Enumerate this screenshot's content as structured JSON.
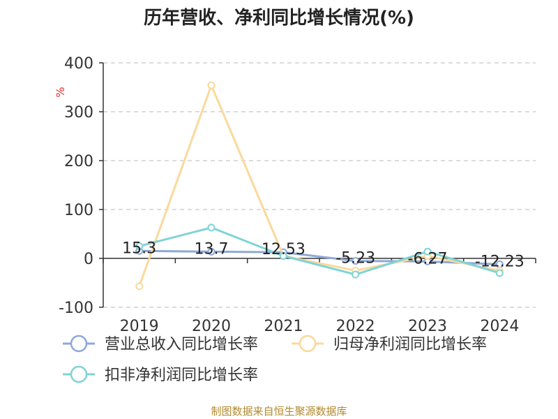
{
  "chart_data": {
    "type": "line",
    "title": "历年营收、净利同比增长情况(%)",
    "ylabel": "%",
    "categories": [
      "2019",
      "2020",
      "2021",
      "2022",
      "2023",
      "2024"
    ],
    "ylim": [
      -100,
      400
    ],
    "yticks": [
      "400",
      "300",
      "200",
      "100",
      "0",
      "-100"
    ],
    "grid": true,
    "legend_position": "bottom",
    "series": [
      {
        "name": "营业总收入同比增长率",
        "color": "#8fa8d8",
        "values": [
          15.3,
          13.7,
          12.53,
          -5.23,
          -6.27,
          -12.23
        ],
        "labels": [
          "15.3",
          "13.7",
          "12.53",
          "-5.23",
          "-6.27",
          "-12.23"
        ]
      },
      {
        "name": "归母净利润同比增长率",
        "color": "#fad99b",
        "values": [
          -57,
          354,
          5,
          -25,
          5,
          -25
        ]
      },
      {
        "name": "扣非净利润同比增长率",
        "color": "#7fd3d6",
        "values": [
          25,
          63,
          5,
          -33,
          14,
          -30
        ]
      }
    ],
    "source": "制图数据来自恒生聚源数据库"
  }
}
